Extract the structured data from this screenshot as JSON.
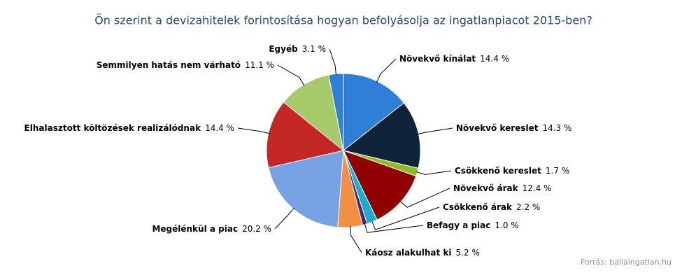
{
  "chart_data": {
    "type": "pie",
    "title": "Ön szerint a devizahitelek forintosítása hogyan befolyásolja az ingatlanpiacot 2015-ben?",
    "credit": "Forrás: ballaingatlan.hu",
    "categories": [
      "Növekvő kínálat",
      "Növekvő kereslet",
      "Csökkenő kereslet",
      "Növekvő árak",
      "Csökkenő árak",
      "Befagy a piac",
      "Káosz alakulhat ki",
      "Megélénkül a piac",
      "Elhalasztott költözések realizálódnak",
      "Semmilyen hatás nem várható",
      "Egyéb"
    ],
    "values": [
      14.4,
      14.3,
      1.7,
      12.4,
      2.2,
      1.0,
      5.2,
      20.2,
      14.4,
      11.1,
      3.1
    ],
    "value_labels": [
      "14.4 %",
      "14.3 %",
      "1.7 %",
      "12.4 %",
      "2.2 %",
      "1.0 %",
      "5.2 %",
      "20.2 %",
      "14.4 %",
      "11.1 %",
      "3.1 %"
    ],
    "colors": [
      "#2f7ed8",
      "#0d233a",
      "#8bbc21",
      "#910000",
      "#1aadce",
      "#492970",
      "#f28f43",
      "#77a1e5",
      "#c42525",
      "#a6c96a",
      "#2f7ed8"
    ]
  }
}
